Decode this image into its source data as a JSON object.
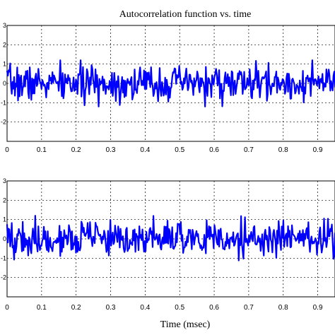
{
  "chart_data": [
    {
      "type": "line",
      "title": "Autocorrelation function vs. time",
      "xlabel": "",
      "ylabel": "",
      "xlim": [
        0,
        0.95
      ],
      "ylim": [
        -3,
        3
      ],
      "x_ticks": [
        "0",
        "0.1",
        "0.2",
        "0.3",
        "0.4",
        "0.5",
        "0.6",
        "0.7",
        "0.8",
        "0.9"
      ],
      "y_ticks": [
        "3",
        "2",
        "1",
        "0",
        "-1",
        "-2"
      ],
      "grid": true,
      "series": [
        {
          "color": "#0000ff",
          "seed": 7,
          "n": 420,
          "noise_sd": 0.45,
          "max_abs": 1.2
        }
      ]
    },
    {
      "type": "line",
      "title": "",
      "xlabel": "Time (msec)",
      "ylabel": "",
      "xlim": [
        0,
        0.95
      ],
      "ylim": [
        -3,
        3
      ],
      "x_ticks": [
        "0",
        "0.1",
        "0.2",
        "0.3",
        "0.4",
        "0.5",
        "0.6",
        "0.7",
        "0.8",
        "0.9"
      ],
      "y_ticks": [
        "3",
        "2",
        "1",
        "0",
        "-1",
        "-2"
      ],
      "grid": true,
      "series": [
        {
          "color": "#0000ff",
          "seed": 19,
          "n": 420,
          "noise_sd": 0.45,
          "max_abs": 1.2
        }
      ]
    }
  ]
}
